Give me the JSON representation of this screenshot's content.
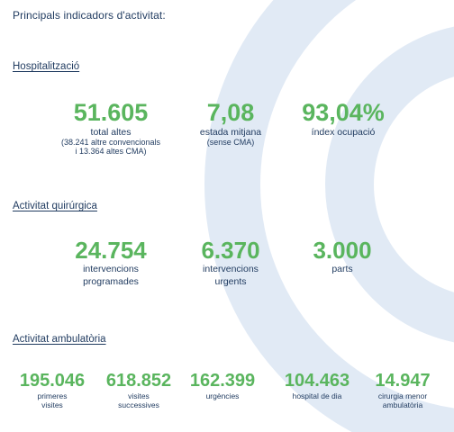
{
  "intro": "Principals indicadors d'activitat:",
  "hospitalitzacio": {
    "title": "Hospitalització",
    "stats": [
      {
        "value": "51.605",
        "label": "total altes",
        "sub1": "(38.241 altre convencionals",
        "sub2": "i 13.364 altes CMA)"
      },
      {
        "value": "7,08",
        "label": "estada mitjana",
        "sub1": "(sense CMA)"
      },
      {
        "value": "93,04%",
        "label": "índex ocupació"
      }
    ]
  },
  "quirurgica": {
    "title": "Activitat quirúrgica",
    "stats": [
      {
        "value": "24.754",
        "label1": "intervencions",
        "label2": "programades"
      },
      {
        "value": "6.370",
        "label1": "intervencions",
        "label2": "urgents"
      },
      {
        "value": "3.000",
        "label1": "parts"
      }
    ]
  },
  "ambulatoria": {
    "title": "Activitat ambulatòria",
    "stats": [
      {
        "value": "195.046",
        "label1": "primeres",
        "label2": "visites"
      },
      {
        "value": "618.852",
        "label1": "visites",
        "label2": "successives"
      },
      {
        "value": "162.399",
        "label1": "urgències"
      },
      {
        "value": "104.463",
        "label1": "hospital de dia"
      },
      {
        "value": "14.947",
        "label1": "cirurgia menor",
        "label2": "ambulatòria"
      }
    ]
  },
  "colors": {
    "accent_green": "#5ab55e",
    "text_navy": "#1f3a5f",
    "ring_blue": "#dfe9f4"
  }
}
